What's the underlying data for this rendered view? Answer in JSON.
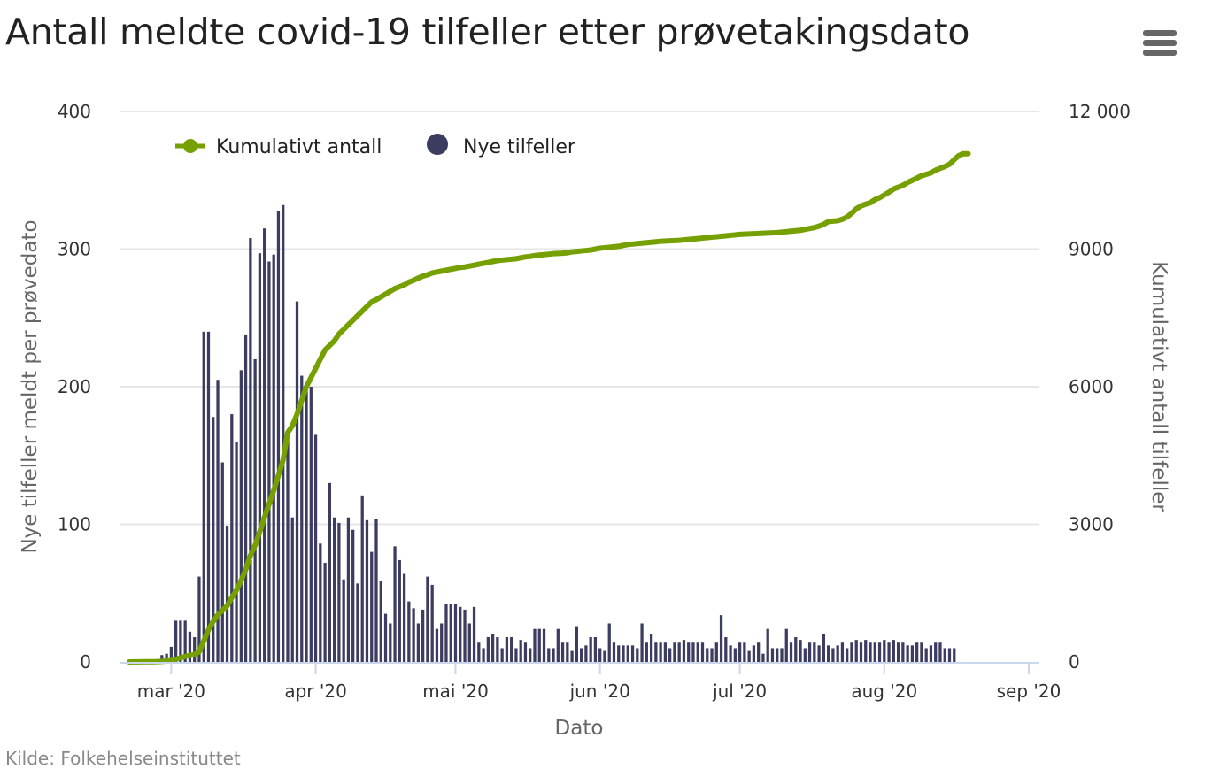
{
  "title": "Antall meldte covid-19 tilfeller etter prøvetakingsdato",
  "credits": "Kilde: Folkehelseinstituttet",
  "menu_icon": "hamburger-menu-icon",
  "colors": {
    "bars": "#3b3c5f",
    "line": "#75a000",
    "grid": "#e6e6e6"
  },
  "chart_data": {
    "type": "bar",
    "title": "Antall meldte covid-19 tilfeller etter prøvetakingsdato",
    "xlabel": "Dato",
    "ylabel": "Nye tilfeller meldt per prøvedato",
    "y2label": "Kumulativt antall tilfeller",
    "x_start": "2020-02-21",
    "x_end": "2020-09-01",
    "x_ticks": [
      {
        "date": "2020-03-01",
        "label": "mar '20"
      },
      {
        "date": "2020-04-01",
        "label": "apr '20"
      },
      {
        "date": "2020-05-01",
        "label": "mai '20"
      },
      {
        "date": "2020-06-01",
        "label": "jun '20"
      },
      {
        "date": "2020-07-01",
        "label": "jul '20"
      },
      {
        "date": "2020-08-01",
        "label": "aug '20"
      },
      {
        "date": "2020-09-01",
        "label": "sep '20"
      }
    ],
    "ylim": [
      0,
      400
    ],
    "yticks": [
      {
        "value": 0,
        "label": "0"
      },
      {
        "value": 100,
        "label": "100"
      },
      {
        "value": 200,
        "label": "200"
      },
      {
        "value": 300,
        "label": "300"
      },
      {
        "value": 400,
        "label": "400"
      }
    ],
    "y2lim": [
      0,
      12000
    ],
    "y2ticks": [
      {
        "value": 0,
        "label": "0"
      },
      {
        "value": 3000,
        "label": "3000"
      },
      {
        "value": 6000,
        "label": "6000"
      },
      {
        "value": 9000,
        "label": "9000"
      },
      {
        "value": 12000,
        "label": "12 000"
      }
    ],
    "grid": true,
    "legend_position": "top-left",
    "series": [
      {
        "name": "Kumulativt antall",
        "type": "line",
        "axis": "right",
        "color": "#75a000",
        "values": [
          1,
          2,
          3,
          4,
          5,
          6,
          8,
          13,
          19,
          30,
          60,
          90,
          120,
          142,
          160,
          222,
          462,
          702,
          880,
          1025,
          1125,
          1224,
          1404,
          1564,
          1776,
          2014,
          2322,
          2542,
          2839,
          3153,
          3444,
          3740,
          4068,
          4400,
          5000,
          5150,
          5400,
          5700,
          6000,
          6200,
          6400,
          6600,
          6800,
          6900,
          7000,
          7150,
          7250,
          7350,
          7450,
          7550,
          7650,
          7750,
          7850,
          7900,
          7960,
          8020,
          8080,
          8140,
          8180,
          8220,
          8280,
          8320,
          8370,
          8410,
          8440,
          8480,
          8500,
          8520,
          8540,
          8560,
          8580,
          8600,
          8610,
          8630,
          8650,
          8670,
          8690,
          8710,
          8730,
          8750,
          8760,
          8770,
          8780,
          8790,
          8810,
          8830,
          8840,
          8860,
          8870,
          8880,
          8890,
          8900,
          8905,
          8910,
          8920,
          8940,
          8950,
          8960,
          8970,
          8980,
          9000,
          9020,
          9030,
          9040,
          9050,
          9060,
          9080,
          9100,
          9110,
          9120,
          9130,
          9140,
          9150,
          9160,
          9170,
          9175,
          9180,
          9185,
          9190,
          9200,
          9210,
          9220,
          9230,
          9240,
          9250,
          9260,
          9270,
          9280,
          9290,
          9300,
          9310,
          9320,
          9325,
          9330,
          9335,
          9340,
          9345,
          9350,
          9355,
          9360,
          9370,
          9380,
          9390,
          9400,
          9410,
          9430,
          9450,
          9470,
          9500,
          9540,
          9600,
          9610,
          9620,
          9650,
          9700,
          9780,
          9880,
          9940,
          9980,
          10010,
          10080,
          10120,
          10180,
          10240,
          10310,
          10350,
          10390,
          10450,
          10500,
          10550,
          10600,
          10630,
          10660,
          10720,
          10760,
          10800,
          10850,
          10950,
          11040,
          11080,
          11080
        ]
      },
      {
        "name": "Nye tilfeller",
        "type": "bar",
        "axis": "left",
        "color": "#3b3c5f",
        "values": [
          1,
          1,
          1,
          1,
          1,
          1,
          2,
          5,
          6,
          11,
          30,
          30,
          30,
          22,
          18,
          62,
          240,
          240,
          178,
          205,
          145,
          99,
          180,
          160,
          212,
          238,
          308,
          220,
          297,
          315,
          291,
          296,
          328,
          332,
          165,
          105,
          262,
          208,
          200,
          200,
          165,
          86,
          72,
          130,
          105,
          101,
          60,
          105,
          96,
          57,
          121,
          103,
          80,
          104,
          59,
          35,
          28,
          84,
          74,
          64,
          44,
          39,
          28,
          38,
          62,
          56,
          24,
          28,
          42,
          42,
          42,
          40,
          38,
          28,
          40,
          14,
          10,
          18,
          20,
          18,
          10,
          18,
          18,
          10,
          16,
          14,
          10,
          24,
          24,
          24,
          10,
          10,
          24,
          14,
          14,
          8,
          26,
          10,
          12,
          18,
          18,
          10,
          8,
          28,
          14,
          12,
          12,
          12,
          12,
          10,
          28,
          14,
          20,
          14,
          14,
          14,
          10,
          14,
          14,
          16,
          14,
          14,
          14,
          14,
          10,
          10,
          14,
          34,
          18,
          12,
          10,
          14,
          14,
          8,
          12,
          14,
          6,
          24,
          10,
          10,
          10,
          24,
          14,
          18,
          16,
          10,
          14,
          14,
          12,
          20,
          12,
          10,
          12,
          14,
          10,
          14,
          16,
          14,
          16,
          14,
          14,
          14,
          16,
          14,
          16,
          14,
          14,
          12,
          12,
          14,
          14,
          10,
          12,
          14,
          14,
          10,
          10,
          10
        ]
      }
    ]
  }
}
